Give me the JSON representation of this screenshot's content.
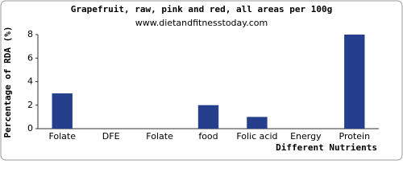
{
  "chart_data": {
    "type": "bar",
    "title": "Grapefruit, raw, pink and red, all areas per 100g",
    "subtitle": "www.dietandfitnesstoday.com",
    "y_label": "Percentage of RDA (%)",
    "x_label": "Different Nutrients",
    "categories": [
      "Folate",
      "DFE",
      "Folate",
      "food",
      "Folic acid",
      "Energy",
      "Protein"
    ],
    "values": [
      3,
      0,
      0,
      2,
      1,
      0,
      8
    ],
    "color": "#263f8c",
    "ylim": [
      0,
      8
    ],
    "yticks": [
      0,
      2,
      4,
      6,
      8
    ],
    "grid": false
  }
}
